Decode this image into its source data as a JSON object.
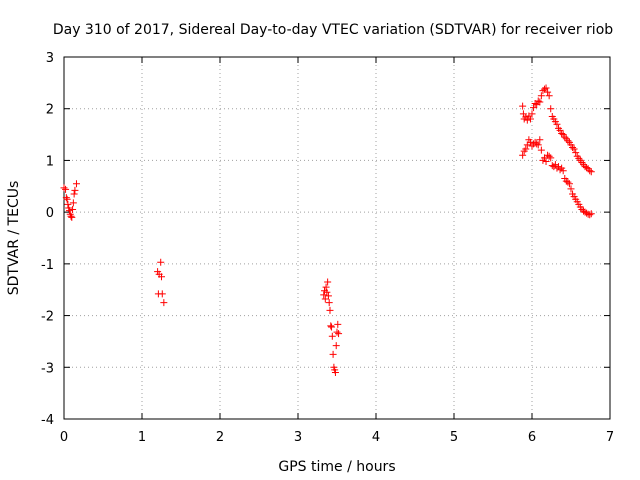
{
  "chart_data": {
    "type": "scatter",
    "title": "Day 310 of 2017, Sidereal Day-to-day VTEC variation (SDTVAR) for receiver riob",
    "xlabel": "GPS time / hours",
    "ylabel": "SDTVAR / TECUs",
    "xlim": [
      0,
      7
    ],
    "ylim": [
      -4,
      3
    ],
    "xticks": [
      0,
      1,
      2,
      3,
      4,
      5,
      6,
      7
    ],
    "yticks": [
      -4,
      -3,
      -2,
      -1,
      0,
      1,
      2,
      3
    ],
    "grid": true,
    "marker": "+",
    "color": "#ff0000",
    "series": [
      {
        "name": "SDTVAR",
        "points": [
          [
            0.0,
            0.47
          ],
          [
            0.02,
            0.44
          ],
          [
            0.03,
            0.28
          ],
          [
            0.04,
            0.25
          ],
          [
            0.05,
            0.15
          ],
          [
            0.06,
            0.08
          ],
          [
            0.07,
            0.03
          ],
          [
            0.08,
            -0.04
          ],
          [
            0.09,
            -0.08
          ],
          [
            0.1,
            -0.1
          ],
          [
            0.11,
            0.05
          ],
          [
            0.12,
            0.18
          ],
          [
            0.13,
            0.35
          ],
          [
            0.14,
            0.42
          ],
          [
            0.16,
            0.55
          ],
          [
            1.2,
            -1.15
          ],
          [
            1.21,
            -1.58
          ],
          [
            1.22,
            -1.2
          ],
          [
            1.24,
            -0.97
          ],
          [
            1.25,
            -1.25
          ],
          [
            1.26,
            -1.58
          ],
          [
            1.28,
            -1.75
          ],
          [
            3.33,
            -1.6
          ],
          [
            3.34,
            -1.52
          ],
          [
            3.35,
            -1.68
          ],
          [
            3.36,
            -1.45
          ],
          [
            3.37,
            -1.55
          ],
          [
            3.38,
            -1.35
          ],
          [
            3.39,
            -1.62
          ],
          [
            3.4,
            -1.75
          ],
          [
            3.41,
            -1.9
          ],
          [
            3.42,
            -2.2
          ],
          [
            3.43,
            -2.22
          ],
          [
            3.44,
            -2.4
          ],
          [
            3.45,
            -2.75
          ],
          [
            3.46,
            -3.0
          ],
          [
            3.47,
            -3.05
          ],
          [
            3.48,
            -3.1
          ],
          [
            3.49,
            -2.58
          ],
          [
            3.5,
            -2.32
          ],
          [
            3.51,
            -2.17
          ],
          [
            3.52,
            -2.35
          ],
          [
            5.88,
            2.05
          ],
          [
            5.89,
            1.9
          ],
          [
            5.9,
            1.8
          ],
          [
            5.92,
            1.84
          ],
          [
            5.94,
            1.78
          ],
          [
            5.96,
            1.86
          ],
          [
            5.98,
            1.8
          ],
          [
            6.0,
            1.9
          ],
          [
            6.02,
            2.02
          ],
          [
            6.04,
            2.1
          ],
          [
            6.06,
            2.08
          ],
          [
            6.08,
            2.15
          ],
          [
            6.1,
            2.13
          ],
          [
            6.12,
            2.25
          ],
          [
            6.14,
            2.35
          ],
          [
            6.16,
            2.38
          ],
          [
            6.18,
            2.4
          ],
          [
            6.2,
            2.32
          ],
          [
            6.22,
            2.25
          ],
          [
            6.24,
            2.0
          ],
          [
            6.26,
            1.85
          ],
          [
            6.28,
            1.8
          ],
          [
            6.3,
            1.75
          ],
          [
            6.32,
            1.7
          ],
          [
            6.34,
            1.62
          ],
          [
            6.36,
            1.58
          ],
          [
            6.38,
            1.52
          ],
          [
            6.4,
            1.5
          ],
          [
            6.42,
            1.45
          ],
          [
            6.44,
            1.42
          ],
          [
            6.46,
            1.38
          ],
          [
            6.48,
            1.35
          ],
          [
            6.5,
            1.3
          ],
          [
            6.52,
            1.25
          ],
          [
            6.54,
            1.22
          ],
          [
            6.56,
            1.15
          ],
          [
            6.58,
            1.08
          ],
          [
            6.6,
            1.04
          ],
          [
            6.62,
            1.0
          ],
          [
            6.64,
            0.96
          ],
          [
            6.66,
            0.92
          ],
          [
            6.68,
            0.88
          ],
          [
            6.7,
            0.86
          ],
          [
            6.72,
            0.84
          ],
          [
            6.74,
            0.8
          ],
          [
            6.76,
            0.78
          ],
          [
            5.88,
            1.1
          ],
          [
            5.9,
            1.18
          ],
          [
            5.92,
            1.22
          ],
          [
            5.94,
            1.3
          ],
          [
            5.96,
            1.4
          ],
          [
            5.98,
            1.35
          ],
          [
            6.0,
            1.28
          ],
          [
            6.02,
            1.32
          ],
          [
            6.04,
            1.35
          ],
          [
            6.06,
            1.32
          ],
          [
            6.08,
            1.3
          ],
          [
            6.1,
            1.4
          ],
          [
            6.12,
            1.2
          ],
          [
            6.14,
            1.0
          ],
          [
            6.16,
            1.05
          ],
          [
            6.18,
            0.98
          ],
          [
            6.2,
            1.1
          ],
          [
            6.22,
            1.08
          ],
          [
            6.24,
            1.05
          ],
          [
            6.26,
            0.9
          ],
          [
            6.28,
            0.88
          ],
          [
            6.3,
            0.92
          ],
          [
            6.32,
            0.85
          ],
          [
            6.34,
            0.88
          ],
          [
            6.36,
            0.82
          ],
          [
            6.38,
            0.85
          ],
          [
            6.4,
            0.8
          ],
          [
            6.42,
            0.65
          ],
          [
            6.44,
            0.6
          ],
          [
            6.46,
            0.58
          ],
          [
            6.48,
            0.55
          ],
          [
            6.5,
            0.45
          ],
          [
            6.52,
            0.35
          ],
          [
            6.54,
            0.3
          ],
          [
            6.56,
            0.25
          ],
          [
            6.58,
            0.2
          ],
          [
            6.6,
            0.15
          ],
          [
            6.62,
            0.1
          ],
          [
            6.64,
            0.05
          ],
          [
            6.66,
            0.02
          ],
          [
            6.68,
            0.0
          ],
          [
            6.7,
            -0.02
          ],
          [
            6.72,
            -0.04
          ],
          [
            6.74,
            -0.05
          ],
          [
            6.76,
            -0.03
          ]
        ]
      }
    ]
  }
}
